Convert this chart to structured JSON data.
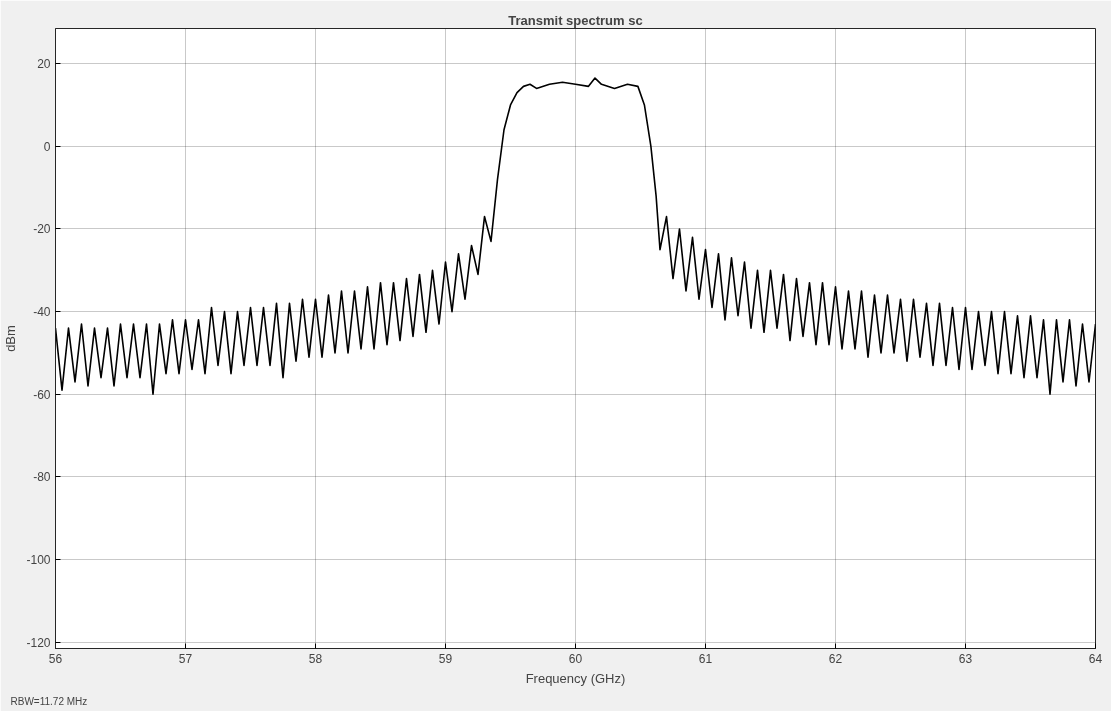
{
  "chart_data": {
    "type": "line",
    "title": "Transmit spectrum sc",
    "xlabel": "Frequency (GHz)",
    "ylabel": "dBm",
    "annotations": [
      "RBW=11.72 MHz"
    ],
    "xlim": [
      56,
      64
    ],
    "ylim": [
      -121.5,
      28.5
    ],
    "xticks": [
      56,
      57,
      58,
      59,
      60,
      61,
      62,
      63,
      64
    ],
    "yticks": [
      -120,
      -100,
      -80,
      -60,
      -40,
      -20,
      0,
      20
    ],
    "grid": true,
    "line_style": "solid",
    "series": [
      {
        "color": "#000000",
        "x": [
          56.0,
          56.05,
          56.1,
          56.15,
          56.2,
          56.25,
          56.3,
          56.35,
          56.4,
          56.45,
          56.5,
          56.55,
          56.6,
          56.65,
          56.7,
          56.75,
          56.8,
          56.85,
          56.9,
          56.95,
          57.0,
          57.05,
          57.1,
          57.15,
          57.2,
          57.25,
          57.3,
          57.35,
          57.4,
          57.45,
          57.5,
          57.55,
          57.6,
          57.65,
          57.7,
          57.75,
          57.8,
          57.85,
          57.9,
          57.95,
          58.0,
          58.05,
          58.1,
          58.15,
          58.2,
          58.25,
          58.3,
          58.35,
          58.4,
          58.45,
          58.5,
          58.55,
          58.6,
          58.65,
          58.7,
          58.75,
          58.8,
          58.85,
          58.9,
          58.95,
          59.0,
          59.05,
          59.1,
          59.15,
          59.2,
          59.25,
          59.3,
          59.35,
          59.4,
          59.45,
          59.5,
          59.55,
          59.6,
          59.65,
          59.7,
          59.8,
          59.9,
          60.0,
          60.1,
          60.15,
          60.2,
          60.3,
          60.4,
          60.48,
          60.53,
          60.58,
          60.62,
          60.65,
          60.7,
          60.75,
          60.8,
          60.85,
          60.9,
          60.95,
          61.0,
          61.05,
          61.1,
          61.15,
          61.2,
          61.25,
          61.3,
          61.35,
          61.4,
          61.45,
          61.5,
          61.55,
          61.6,
          61.65,
          61.7,
          61.75,
          61.8,
          61.85,
          61.9,
          61.95,
          62.0,
          62.05,
          62.1,
          62.15,
          62.2,
          62.25,
          62.3,
          62.35,
          62.4,
          62.45,
          62.5,
          62.55,
          62.6,
          62.65,
          62.7,
          62.75,
          62.8,
          62.85,
          62.9,
          62.95,
          63.0,
          63.05,
          63.1,
          63.15,
          63.2,
          63.25,
          63.3,
          63.35,
          63.4,
          63.45,
          63.5,
          63.55,
          63.6,
          63.65,
          63.7,
          63.75,
          63.8,
          63.85,
          63.9,
          63.95,
          64.0
        ],
        "values": [
          -44,
          -59,
          -44,
          -57,
          -43,
          -58,
          -44,
          -56,
          -44,
          -58,
          -43,
          -56,
          -43,
          -56,
          -43,
          -60,
          -43,
          -55,
          -42,
          -55,
          -42,
          -54,
          -42,
          -55,
          -39,
          -53,
          -40,
          -55,
          -40,
          -53,
          -39,
          -53,
          -39,
          -53,
          -38,
          -56,
          -38,
          -52,
          -37,
          -51,
          -37,
          -51,
          -36,
          -50,
          -35,
          -50,
          -35,
          -49,
          -34,
          -49,
          -33,
          -48,
          -33,
          -47,
          -32,
          -46,
          -31,
          -45,
          -30,
          -43,
          -28,
          -40,
          -26,
          -37,
          -24,
          -31,
          -17,
          -23,
          -8,
          4,
          10,
          13,
          14.5,
          15,
          14,
          15,
          15.5,
          15,
          14.5,
          16.5,
          15,
          14,
          15,
          14.5,
          10,
          0,
          -12,
          -25,
          -17,
          -32,
          -20,
          -35,
          -22,
          -37,
          -25,
          -39,
          -26,
          -42,
          -27,
          -41,
          -28,
          -44,
          -30,
          -45,
          -30,
          -44,
          -31,
          -47,
          -32,
          -46,
          -33,
          -48,
          -33,
          -48,
          -34,
          -49,
          -35,
          -49,
          -35,
          -51,
          -36,
          -50,
          -36,
          -50,
          -37,
          -52,
          -37,
          -51,
          -38,
          -53,
          -38,
          -53,
          -39,
          -54,
          -39,
          -54,
          -40,
          -53,
          -40,
          -55,
          -40,
          -55,
          -41,
          -56,
          -41,
          -56,
          -42,
          -60,
          -42,
          -57,
          -42,
          -58,
          -43,
          -57,
          -43
        ]
      }
    ]
  }
}
